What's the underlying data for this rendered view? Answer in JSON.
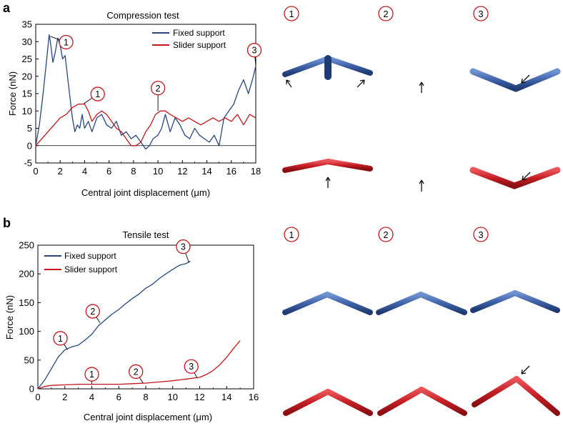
{
  "panels": [
    {
      "label": "a"
    },
    {
      "label": "b"
    }
  ],
  "colors": {
    "fixed": "#27477f",
    "slider": "#c3161c",
    "fixed_light": "#5c80c3",
    "slider_light": "#e0383c"
  },
  "chart_data": [
    {
      "type": "line",
      "title": "Compression test",
      "xlabel": "Central joint displacement (μm)",
      "ylabel": "Force (nN)",
      "xlim": [
        0,
        18
      ],
      "ylim": [
        -5,
        35
      ],
      "xticks": [
        0,
        2,
        4,
        6,
        8,
        10,
        12,
        14,
        16,
        18
      ],
      "yticks": [
        -5,
        0,
        5,
        10,
        15,
        20,
        25,
        30,
        35
      ],
      "series": [
        {
          "name": "Fixed support",
          "color": "#27477f",
          "x": [
            0,
            0.3,
            0.6,
            0.9,
            1.1,
            1.2,
            1.4,
            1.6,
            1.8,
            2.0,
            2.2,
            2.4,
            2.6,
            2.8,
            3.0,
            3.2,
            3.4,
            3.6,
            3.8,
            4.0,
            4.3,
            4.6,
            5.0,
            5.4,
            5.8,
            6.2,
            6.6,
            7.0,
            7.4,
            7.8,
            8.2,
            8.6,
            9.0,
            9.3,
            9.6,
            10.0,
            10.3,
            10.6,
            11.0,
            11.4,
            11.8,
            12.2,
            12.6,
            13.0,
            13.4,
            13.8,
            14.2,
            14.6,
            15.0,
            15.4,
            15.8,
            16.2,
            16.6,
            17.0,
            17.4,
            17.8,
            18.0
          ],
          "y": [
            0,
            6,
            15,
            25,
            32,
            30,
            24,
            27,
            31,
            29,
            25,
            26,
            20,
            14,
            8,
            4,
            6,
            5,
            9,
            5,
            7,
            4,
            8,
            9,
            6,
            5,
            7,
            3,
            4,
            2,
            3,
            1,
            -1,
            0,
            2,
            3,
            5,
            9,
            4,
            8,
            6,
            3,
            2,
            5,
            3,
            2,
            1,
            3,
            0,
            8,
            10,
            12,
            16,
            19,
            15,
            20,
            23
          ]
        },
        {
          "name": "Slider support",
          "color": "#c3161c",
          "x": [
            0,
            0.5,
            1.0,
            1.5,
            2.0,
            2.5,
            3.0,
            3.5,
            4.0,
            4.3,
            4.6,
            5.0,
            5.4,
            5.8,
            6.2,
            6.6,
            7.0,
            7.4,
            7.8,
            8.2,
            8.6,
            9.0,
            9.4,
            9.8,
            10.2,
            10.6,
            11.0,
            11.5,
            12.0,
            12.5,
            13.0,
            13.5,
            14.0,
            14.5,
            15.0,
            15.5,
            16.0,
            16.5,
            17.0,
            17.5,
            18.0
          ],
          "y": [
            0,
            2,
            4,
            6,
            8,
            9,
            11,
            12,
            12,
            10,
            7,
            9,
            10,
            9,
            7,
            5,
            4,
            2,
            0,
            0,
            1,
            4,
            6,
            9,
            10,
            10,
            9,
            8,
            7,
            8,
            7,
            6,
            7,
            8,
            7,
            8,
            7,
            9,
            6,
            9,
            8
          ]
        }
      ],
      "annotations": [
        {
          "label": "1",
          "series": "Fixed support",
          "x": 1.2,
          "y": 31.5
        },
        {
          "label": "1",
          "series": "Slider support",
          "x": 3.9,
          "y": 12
        },
        {
          "label": "2",
          "series": "both",
          "x": 10.0,
          "y": 10
        },
        {
          "label": "3",
          "series": "Fixed support",
          "x": 18.0,
          "y": 23
        }
      ]
    },
    {
      "type": "line",
      "title": "Tensile test",
      "xlabel": "Central joint displacement (μm)",
      "ylabel": "Force (nN)",
      "xlim": [
        0,
        16
      ],
      "ylim": [
        0,
        250
      ],
      "xticks": [
        0,
        2,
        4,
        6,
        8,
        10,
        12,
        14,
        16
      ],
      "yticks": [
        0,
        50,
        100,
        150,
        200,
        250
      ],
      "series": [
        {
          "name": "Fixed support",
          "color": "#27477f",
          "x": [
            0,
            0.5,
            1.0,
            1.5,
            2.0,
            2.5,
            3.0,
            3.5,
            4.0,
            4.5,
            5.0,
            5.5,
            6.0,
            6.5,
            7.0,
            7.5,
            8.0,
            8.5,
            9.0,
            9.5,
            10.0,
            10.5,
            11.0,
            11.3
          ],
          "y": [
            0,
            15,
            35,
            55,
            68,
            73,
            76,
            85,
            95,
            110,
            120,
            130,
            138,
            148,
            157,
            165,
            175,
            182,
            192,
            200,
            208,
            215,
            218,
            222
          ]
        },
        {
          "name": "Slider support",
          "color": "#c3161c",
          "x": [
            0,
            0.5,
            1.0,
            2.0,
            3.0,
            4.0,
            5.0,
            6.0,
            7.0,
            8.0,
            9.0,
            10.0,
            11.0,
            12.0,
            12.5,
            13.0,
            13.5,
            14.0,
            14.5,
            15.0
          ],
          "y": [
            0,
            4,
            6,
            7,
            8,
            8,
            8,
            8,
            9,
            10,
            12,
            14,
            17,
            20,
            25,
            32,
            42,
            55,
            70,
            84
          ]
        }
      ],
      "annotations": [
        {
          "label": "1",
          "series": "Fixed support",
          "x": 2.2,
          "y": 68
        },
        {
          "label": "2",
          "series": "Fixed support",
          "x": 4.6,
          "y": 115
        },
        {
          "label": "3",
          "series": "Fixed support",
          "x": 11.2,
          "y": 220
        },
        {
          "label": "1",
          "series": "Slider support",
          "x": 4.0,
          "y": 8
        },
        {
          "label": "2",
          "series": "Slider support",
          "x": 7.8,
          "y": 10
        },
        {
          "label": "3",
          "series": "Slider support",
          "x": 11.8,
          "y": 19
        }
      ]
    }
  ],
  "render_labels": {
    "a": [
      "1",
      "2",
      "3"
    ],
    "b": [
      "1",
      "2",
      "3"
    ]
  }
}
